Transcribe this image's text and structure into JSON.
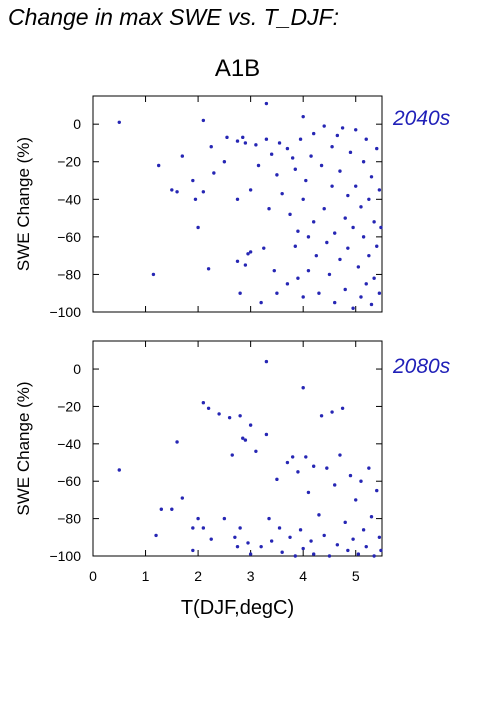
{
  "figure_title": "Change in max SWE vs. T_DJF:",
  "scenario": "A1B",
  "colors": {
    "points": "#2626b4",
    "period_label": "#2020b8",
    "axes": "#000000"
  },
  "chart_data": [
    {
      "type": "scatter",
      "period": "2040s",
      "ylabel": "SWE Change (%)",
      "xlabel": "",
      "xlim": [
        0,
        5.5
      ],
      "ylim": [
        -100,
        15
      ],
      "yticks": [
        0,
        -20,
        -40,
        -60,
        -80,
        -100
      ],
      "ytick_labels": [
        "0",
        "−20",
        "−40",
        "−60",
        "−80",
        "−100"
      ],
      "xticks": [
        0,
        1,
        2,
        3,
        4,
        5
      ],
      "xtick_labels": [],
      "points": [
        [
          0.5,
          1
        ],
        [
          1.15,
          -80
        ],
        [
          1.25,
          -22
        ],
        [
          1.5,
          -35
        ],
        [
          1.6,
          -36
        ],
        [
          1.7,
          -17
        ],
        [
          1.9,
          -30
        ],
        [
          1.95,
          -40
        ],
        [
          2.0,
          -55
        ],
        [
          2.1,
          2
        ],
        [
          2.1,
          -36
        ],
        [
          2.2,
          -77
        ],
        [
          2.25,
          -12
        ],
        [
          2.3,
          -26
        ],
        [
          2.5,
          -20
        ],
        [
          2.55,
          -7
        ],
        [
          2.75,
          -9
        ],
        [
          2.75,
          -40
        ],
        [
          2.75,
          -73
        ],
        [
          2.8,
          -90
        ],
        [
          2.85,
          -7
        ],
        [
          2.9,
          -10
        ],
        [
          2.9,
          -75
        ],
        [
          2.95,
          -69
        ],
        [
          3.0,
          -35
        ],
        [
          3.0,
          -68
        ],
        [
          3.1,
          -11
        ],
        [
          3.15,
          -22
        ],
        [
          3.2,
          -95
        ],
        [
          3.25,
          -66
        ],
        [
          3.3,
          11
        ],
        [
          3.3,
          -8
        ],
        [
          3.35,
          -45
        ],
        [
          3.4,
          -16
        ],
        [
          3.45,
          -78
        ],
        [
          3.5,
          -27
        ],
        [
          3.5,
          -90
        ],
        [
          3.55,
          -10
        ],
        [
          3.6,
          -37
        ],
        [
          3.7,
          -13
        ],
        [
          3.7,
          -85
        ],
        [
          3.75,
          -48
        ],
        [
          3.8,
          -18
        ],
        [
          3.85,
          -24
        ],
        [
          3.85,
          -65
        ],
        [
          3.9,
          -57
        ],
        [
          3.9,
          -82
        ],
        [
          3.95,
          -8
        ],
        [
          4.0,
          4
        ],
        [
          4.0,
          -40
        ],
        [
          4.0,
          -92
        ],
        [
          4.05,
          -30
        ],
        [
          4.1,
          -60
        ],
        [
          4.1,
          -78
        ],
        [
          4.15,
          -17
        ],
        [
          4.2,
          -5
        ],
        [
          4.2,
          -52
        ],
        [
          4.25,
          -70
        ],
        [
          4.3,
          -90
        ],
        [
          4.35,
          -22
        ],
        [
          4.4,
          -1
        ],
        [
          4.4,
          -45
        ],
        [
          4.45,
          -63
        ],
        [
          4.5,
          -80
        ],
        [
          4.55,
          -12
        ],
        [
          4.55,
          -33
        ],
        [
          4.6,
          -58
        ],
        [
          4.6,
          -95
        ],
        [
          4.65,
          -6
        ],
        [
          4.7,
          -25
        ],
        [
          4.7,
          -72
        ],
        [
          4.75,
          -2
        ],
        [
          4.8,
          -50
        ],
        [
          4.8,
          -88
        ],
        [
          4.85,
          -38
        ],
        [
          4.85,
          -66
        ],
        [
          4.9,
          -15
        ],
        [
          4.95,
          -55
        ],
        [
          4.95,
          -98
        ],
        [
          5.0,
          -3
        ],
        [
          5.0,
          -33
        ],
        [
          5.05,
          -76
        ],
        [
          5.1,
          -44
        ],
        [
          5.1,
          -92
        ],
        [
          5.15,
          -20
        ],
        [
          5.15,
          -60
        ],
        [
          5.2,
          -8
        ],
        [
          5.2,
          -85
        ],
        [
          5.25,
          -40
        ],
        [
          5.25,
          -70
        ],
        [
          5.3,
          -28
        ],
        [
          5.3,
          -96
        ],
        [
          5.35,
          -52
        ],
        [
          5.35,
          -82
        ],
        [
          5.4,
          -13
        ],
        [
          5.4,
          -65
        ],
        [
          5.45,
          -35
        ],
        [
          5.45,
          -90
        ],
        [
          5.48,
          -55
        ]
      ]
    },
    {
      "type": "scatter",
      "period": "2080s",
      "ylabel": "SWE Change (%)",
      "xlabel": "T(DJF,degC)",
      "xlim": [
        0,
        5.5
      ],
      "ylim": [
        -100,
        15
      ],
      "yticks": [
        0,
        -20,
        -40,
        -60,
        -80,
        -100
      ],
      "ytick_labels": [
        "0",
        "−20",
        "−40",
        "−60",
        "−80",
        "−100"
      ],
      "xticks": [
        0,
        1,
        2,
        3,
        4,
        5
      ],
      "xtick_labels": [
        "0",
        "1",
        "2",
        "3",
        "4",
        "5"
      ],
      "points": [
        [
          0.5,
          -54
        ],
        [
          1.2,
          -89
        ],
        [
          1.3,
          -75
        ],
        [
          1.5,
          -75
        ],
        [
          1.6,
          -39
        ],
        [
          1.7,
          -69
        ],
        [
          1.9,
          -85
        ],
        [
          1.9,
          -97
        ],
        [
          2.0,
          -80
        ],
        [
          2.1,
          -18
        ],
        [
          2.1,
          -85
        ],
        [
          2.2,
          -21
        ],
        [
          2.25,
          -91
        ],
        [
          2.4,
          -24
        ],
        [
          2.5,
          -80
        ],
        [
          2.6,
          -26
        ],
        [
          2.65,
          -46
        ],
        [
          2.7,
          -90
        ],
        [
          2.75,
          -95
        ],
        [
          2.8,
          -25
        ],
        [
          2.8,
          -85
        ],
        [
          2.85,
          -37
        ],
        [
          2.9,
          -38
        ],
        [
          2.95,
          -93
        ],
        [
          3.0,
          -30
        ],
        [
          3.0,
          -99
        ],
        [
          3.1,
          -44
        ],
        [
          3.2,
          -95
        ],
        [
          3.3,
          4
        ],
        [
          3.3,
          -35
        ],
        [
          3.35,
          -80
        ],
        [
          3.4,
          -92
        ],
        [
          3.5,
          -59
        ],
        [
          3.55,
          -85
        ],
        [
          3.6,
          -98
        ],
        [
          3.7,
          -50
        ],
        [
          3.75,
          -90
        ],
        [
          3.8,
          -47
        ],
        [
          3.85,
          -100
        ],
        [
          3.9,
          -55
        ],
        [
          3.95,
          -86
        ],
        [
          4.0,
          -10
        ],
        [
          4.0,
          -96
        ],
        [
          4.05,
          -47
        ],
        [
          4.1,
          -66
        ],
        [
          4.15,
          -92
        ],
        [
          4.2,
          -52
        ],
        [
          4.2,
          -99
        ],
        [
          4.3,
          -78
        ],
        [
          4.35,
          -25
        ],
        [
          4.4,
          -89
        ],
        [
          4.45,
          -53
        ],
        [
          4.5,
          -100
        ],
        [
          4.55,
          -23
        ],
        [
          4.6,
          -62
        ],
        [
          4.65,
          -94
        ],
        [
          4.7,
          -46
        ],
        [
          4.75,
          -21
        ],
        [
          4.8,
          -82
        ],
        [
          4.85,
          -97
        ],
        [
          4.9,
          -57
        ],
        [
          4.95,
          -91
        ],
        [
          5.0,
          -70
        ],
        [
          5.05,
          -99
        ],
        [
          5.1,
          -60
        ],
        [
          5.15,
          -86
        ],
        [
          5.2,
          -95
        ],
        [
          5.25,
          -53
        ],
        [
          5.3,
          -79
        ],
        [
          5.35,
          -100
        ],
        [
          5.4,
          -65
        ],
        [
          5.45,
          -90
        ],
        [
          5.48,
          -97
        ]
      ]
    }
  ]
}
